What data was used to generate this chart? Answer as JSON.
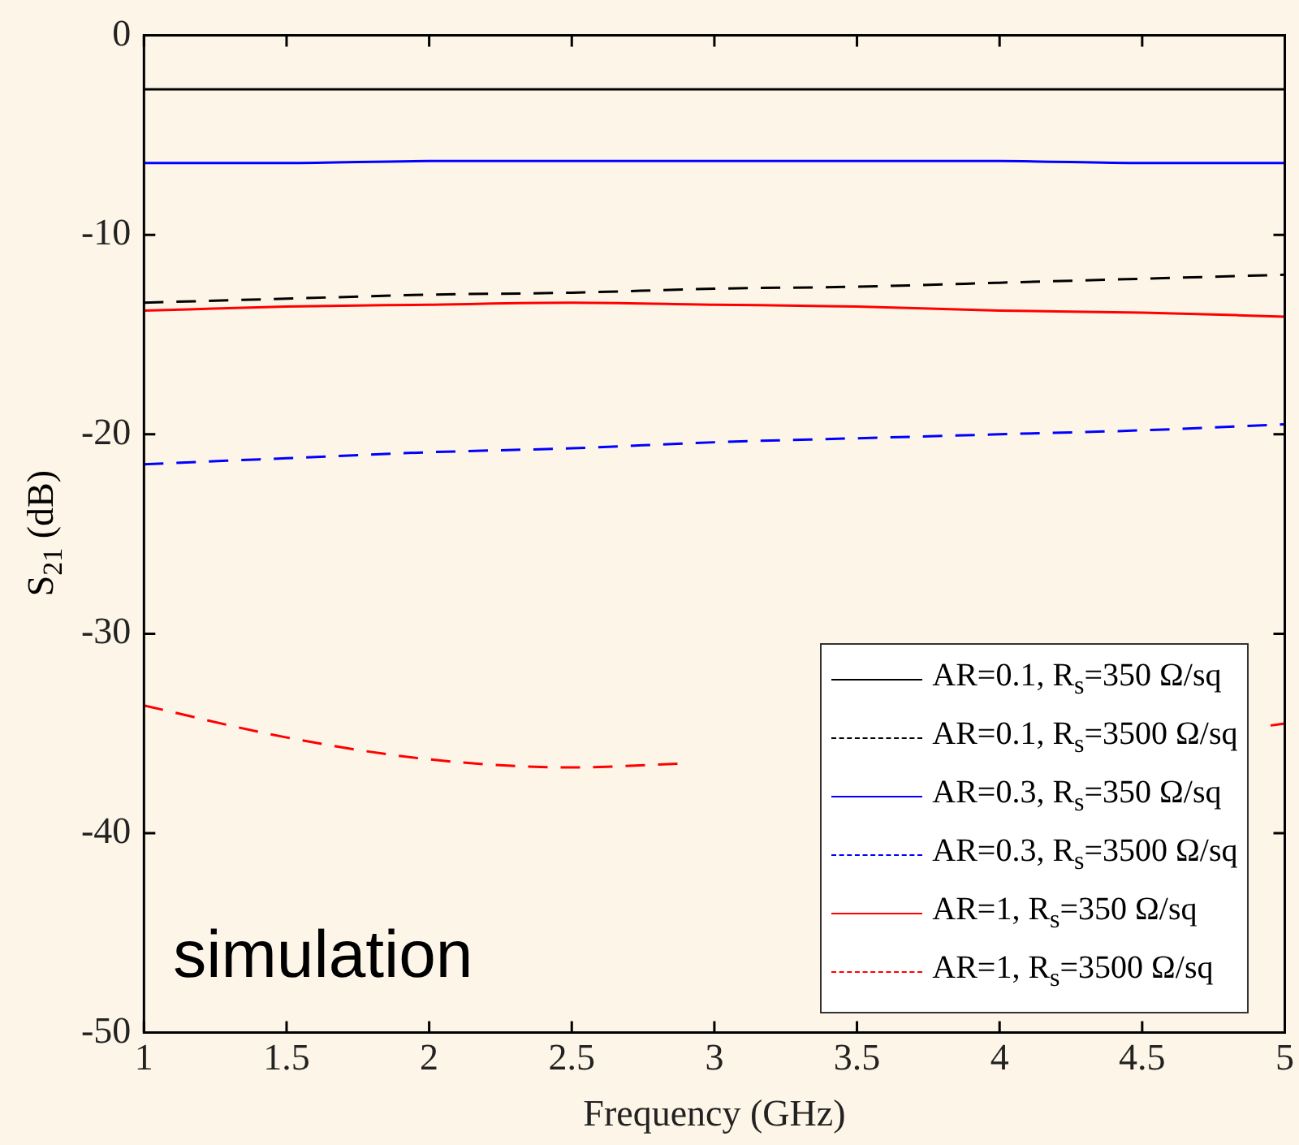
{
  "chart_data": {
    "type": "line",
    "xlabel": "Frequency (GHz)",
    "ylabel": "S$_{21}$ (dB)",
    "x": [
      1,
      1.5,
      2,
      2.5,
      3,
      3.5,
      4,
      4.5,
      5
    ],
    "xlim": [
      1,
      5
    ],
    "xticks": [
      1,
      1.5,
      2,
      2.5,
      3,
      3.5,
      4,
      4.5,
      5
    ],
    "ylim": [
      -50,
      0
    ],
    "yticks": [
      -50,
      -40,
      -30,
      -20,
      -10,
      0
    ],
    "grid": false,
    "legend": "bottom right",
    "marker": "none",
    "annotations": [
      "simulation"
    ],
    "series": [
      {
        "name": "AR=0.1, R$_{s}$=350 Ω/sq",
        "color": "#000000",
        "line_style": "solid",
        "values": [
          -2.7,
          -2.7,
          -2.7,
          -2.7,
          -2.7,
          -2.7,
          -2.7,
          -2.7,
          -2.7
        ]
      },
      {
        "name": "AR=0.1, R$_{s}$=3500 Ω/sq",
        "color": "#000000",
        "line_style": "dashed",
        "values": [
          -13.4,
          -13.2,
          -13.0,
          -12.9,
          -12.7,
          -12.6,
          -12.4,
          -12.2,
          -12.0
        ]
      },
      {
        "name": "AR=0.3, R$_{s}$=350 Ω/sq",
        "color": "#0000ff",
        "line_style": "solid",
        "values": [
          -6.4,
          -6.4,
          -6.3,
          -6.3,
          -6.3,
          -6.3,
          -6.3,
          -6.4,
          -6.4
        ]
      },
      {
        "name": "AR=0.3, R$_{s}$=3500 Ω/sq",
        "color": "#0000ff",
        "line_style": "dashed",
        "values": [
          -21.5,
          -21.2,
          -20.9,
          -20.7,
          -20.4,
          -20.2,
          -20.0,
          -19.8,
          -19.5
        ]
      },
      {
        "name": "AR=1, R$_{s}$=350 Ω/sq",
        "color": "#ff0000",
        "line_style": "solid",
        "values": [
          -13.8,
          -13.6,
          -13.5,
          -13.4,
          -13.5,
          -13.6,
          -13.8,
          -13.9,
          -14.1
        ]
      },
      {
        "name": "AR=1, R$_{s}$=3500 Ω/sq",
        "color": "#ff0000",
        "line_style": "dashed",
        "x": [
          1,
          1.5,
          2,
          2.5,
          2.9,
          3.5,
          4,
          4.5,
          4.95,
          5
        ],
        "values": [
          -33.6,
          -35.2,
          -36.3,
          -36.7,
          -36.5,
          null,
          null,
          null,
          -34.6,
          -34.5
        ]
      }
    ]
  }
}
